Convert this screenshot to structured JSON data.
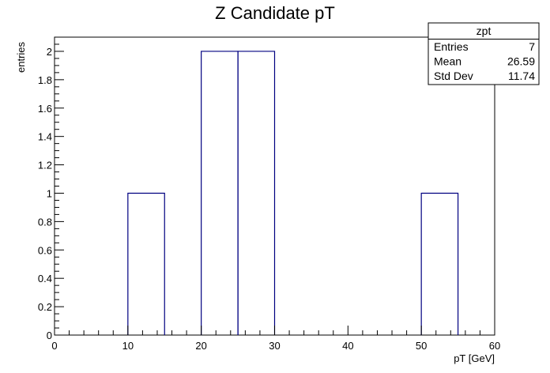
{
  "chart_data": {
    "type": "bar",
    "title": "Z Candidate pT",
    "xlabel": "pT [GeV]",
    "ylabel": "entries",
    "xlim": [
      0,
      60
    ],
    "ylim": [
      0,
      2.1
    ],
    "bin_width": 5,
    "bins": [
      {
        "low": 0,
        "high": 5,
        "value": 0
      },
      {
        "low": 5,
        "high": 10,
        "value": 0
      },
      {
        "low": 10,
        "high": 15,
        "value": 1
      },
      {
        "low": 15,
        "high": 20,
        "value": 0
      },
      {
        "low": 20,
        "high": 25,
        "value": 2
      },
      {
        "low": 25,
        "high": 30,
        "value": 2
      },
      {
        "low": 30,
        "high": 35,
        "value": 0
      },
      {
        "low": 35,
        "high": 40,
        "value": 0
      },
      {
        "low": 40,
        "high": 45,
        "value": 0
      },
      {
        "low": 45,
        "high": 50,
        "value": 0
      },
      {
        "low": 50,
        "high": 55,
        "value": 1
      },
      {
        "low": 55,
        "high": 60,
        "value": 0
      }
    ],
    "x_ticks": [
      "0",
      "10",
      "20",
      "30",
      "40",
      "50",
      "60"
    ],
    "y_ticks": [
      "0",
      "0.2",
      "0.4",
      "0.6",
      "0.8",
      "1",
      "1.2",
      "1.4",
      "1.6",
      "1.8",
      "2"
    ],
    "line_color": "#000080",
    "stats": {
      "name": "zpt",
      "rows": [
        {
          "label": "Entries",
          "value": "7"
        },
        {
          "label": "Mean",
          "value": "26.59"
        },
        {
          "label": "Std Dev",
          "value": "11.74"
        }
      ]
    },
    "grid": false,
    "legend": "top-right"
  }
}
